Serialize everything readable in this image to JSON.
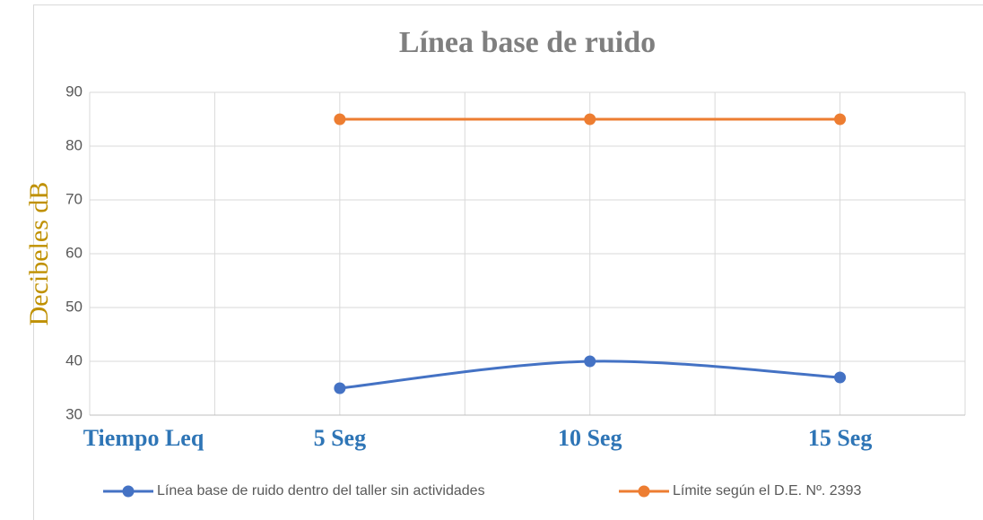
{
  "chart_data": {
    "type": "line",
    "title": "Línea base de ruido",
    "y_label": "Decibeles dB",
    "categories": [
      "Tiempo Leq",
      "5 Seg",
      "10 Seg",
      "15 Seg"
    ],
    "series": [
      {
        "name": "Línea base de ruido dentro del taller sin actividades",
        "color": "#4472c4",
        "values": [
          null,
          35,
          40,
          37
        ]
      },
      {
        "name": "Límite según el D.E. Nº. 2393",
        "color": "#ed7d31",
        "values": [
          null,
          85,
          85,
          85
        ]
      }
    ],
    "ylim": [
      30,
      90
    ],
    "yticks": [
      30,
      40,
      50,
      60,
      70,
      80,
      90
    ],
    "grid": true,
    "legend": "bottom"
  }
}
